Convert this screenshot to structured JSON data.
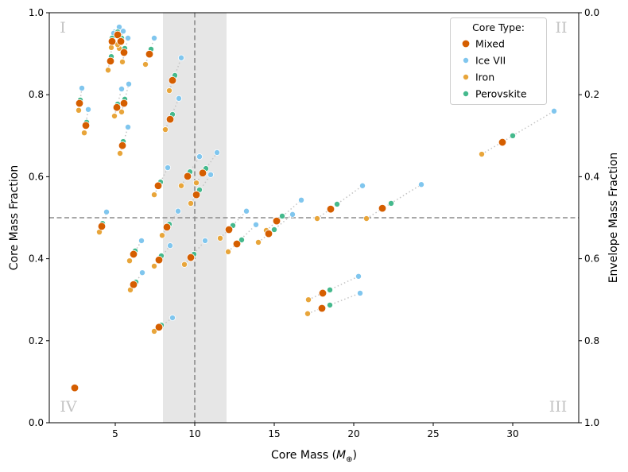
{
  "chart_data": {
    "type": "scatter",
    "xlabel_prefix": "Core Mass (",
    "xlabel_symbol": "M",
    "xlabel_sub": "⊕",
    "xlabel_suffix": ")",
    "ylabel": "Core Mass Fraction",
    "ylabel_right": "Envelope Mass Fraction",
    "xlim": [
      0.85,
      34.15
    ],
    "ylim": [
      0,
      1
    ],
    "ylim_right": [
      1,
      0
    ],
    "x_ticks": [
      "5",
      "10",
      "15",
      "20",
      "25",
      "30"
    ],
    "x_tick_values": [
      5,
      10,
      15,
      20,
      25,
      30
    ],
    "y_ticks": [
      "0.0",
      "0.2",
      "0.4",
      "0.6",
      "0.8",
      "1.0"
    ],
    "y_tick_values": [
      0,
      0.2,
      0.4,
      0.6,
      0.8,
      1.0
    ],
    "y_right_ticks": [
      "0.0",
      "0.2",
      "0.4",
      "0.6",
      "0.8",
      "1.0"
    ],
    "grid": false,
    "reference_lines": {
      "vertical_x": 10,
      "horizontal_y": 0.5
    },
    "shaded_band_x": [
      8,
      12
    ],
    "quadrant_labels": {
      "top_left": "I",
      "top_right": "II",
      "bottom_right": "III",
      "bottom_left": "IV"
    },
    "legend": {
      "title": "Core Type:",
      "placement": "top-right",
      "entries": [
        "Mixed",
        "Ice VII",
        "Iron",
        "Perovskite"
      ]
    },
    "colors": {
      "Mixed": "#d55e00",
      "Ice VII": "#80c6ee",
      "Iron": "#e8a53a",
      "Perovskite": "#45b98d",
      "link": "#c4c4c4",
      "refline": "#8c8c8c",
      "band": "#e6e6e6"
    },
    "groups": [
      {
        "Iron": [
          2.7,
          0.762
        ],
        "Mixed": [
          2.75,
          0.779
        ],
        "Perovskite": [
          2.8,
          0.787
        ],
        "Ice VII": [
          2.9,
          0.816
        ]
      },
      {
        "Iron": [
          3.05,
          0.707
        ],
        "Mixed": [
          3.15,
          0.725
        ],
        "Perovskite": [
          3.2,
          0.733
        ],
        "Ice VII": [
          3.3,
          0.764
        ]
      },
      {
        "Iron": [
          4.55,
          0.86
        ],
        "Mixed": [
          4.7,
          0.882
        ],
        "Perovskite": [
          4.75,
          0.893
        ],
        "Ice VII": [
          4.95,
          0.953
        ]
      },
      {
        "Iron": [
          4.75,
          0.915
        ],
        "Mixed": [
          4.8,
          0.93
        ],
        "Perovskite": [
          4.8,
          0.938
        ],
        "Ice VII": [
          4.9,
          0.95
        ]
      },
      {
        "Iron": [
          5.25,
          0.913
        ],
        "Mixed": [
          5.15,
          0.946
        ],
        "Perovskite": [
          5.15,
          0.953
        ],
        "Ice VII": [
          5.25,
          0.965
        ]
      },
      {
        "Iron": [
          5.15,
          0.922
        ],
        "Mixed": [
          5.35,
          0.93
        ],
        "Perovskite": [
          5.4,
          0.938
        ],
        "Ice VII": [
          5.5,
          0.955
        ]
      },
      {
        "Iron": [
          5.45,
          0.88
        ],
        "Mixed": [
          5.55,
          0.903
        ],
        "Perovskite": [
          5.6,
          0.913
        ],
        "Ice VII": [
          5.8,
          0.938
        ]
      },
      {
        "Iron": [
          5.4,
          0.758
        ],
        "Mixed": [
          5.55,
          0.779
        ],
        "Perovskite": [
          5.6,
          0.789
        ],
        "Ice VII": [
          5.85,
          0.826
        ]
      },
      {
        "Iron": [
          4.95,
          0.748
        ],
        "Mixed": [
          5.1,
          0.769
        ],
        "Perovskite": [
          5.15,
          0.777
        ],
        "Ice VII": [
          5.4,
          0.814
        ]
      },
      {
        "Iron": [
          5.3,
          0.657
        ],
        "Mixed": [
          5.45,
          0.676
        ],
        "Perovskite": [
          5.5,
          0.686
        ],
        "Ice VII": [
          5.8,
          0.721
        ]
      },
      {
        "Iron": [
          6.9,
          0.874
        ],
        "Mixed": [
          7.15,
          0.899
        ],
        "Perovskite": [
          7.25,
          0.911
        ],
        "Ice VII": [
          7.45,
          0.938
        ]
      },
      {
        "Iron": [
          8.4,
          0.81
        ],
        "Mixed": [
          8.6,
          0.835
        ],
        "Perovskite": [
          8.75,
          0.847
        ],
        "Ice VII": [
          9.15,
          0.89
        ]
      },
      {
        "Iron": [
          8.15,
          0.715
        ],
        "Mixed": [
          8.45,
          0.74
        ],
        "Perovskite": [
          8.6,
          0.752
        ],
        "Ice VII": [
          9.0,
          0.791
        ]
      },
      {
        "Iron": [
          7.45,
          0.556
        ],
        "Mixed": [
          7.7,
          0.578
        ],
        "Perovskite": [
          7.85,
          0.587
        ],
        "Ice VII": [
          8.3,
          0.622
        ]
      },
      {
        "Iron": [
          9.15,
          0.578
        ],
        "Mixed": [
          9.55,
          0.601
        ],
        "Perovskite": [
          9.7,
          0.612
        ],
        "Ice VII": [
          10.3,
          0.649
        ]
      },
      {
        "Iron": [
          10.1,
          0.585
        ],
        "Mixed": [
          10.5,
          0.609
        ],
        "Perovskite": [
          10.7,
          0.62
        ],
        "Ice VII": [
          11.4,
          0.659
        ]
      },
      {
        "Iron": [
          9.75,
          0.535
        ],
        "Mixed": [
          10.1,
          0.556
        ],
        "Perovskite": [
          10.3,
          0.568
        ],
        "Ice VII": [
          11.0,
          0.605
        ]
      },
      {
        "Iron": [
          4.0,
          0.465
        ],
        "Mixed": [
          4.15,
          0.479
        ],
        "Perovskite": [
          4.2,
          0.486
        ],
        "Ice VII": [
          4.45,
          0.514
        ]
      },
      {
        "Iron": [
          7.95,
          0.457
        ],
        "Mixed": [
          8.25,
          0.477
        ],
        "Perovskite": [
          8.4,
          0.484
        ],
        "Ice VII": [
          8.95,
          0.516
        ]
      },
      {
        "Iron": [
          11.6,
          0.45
        ],
        "Mixed": [
          12.15,
          0.471
        ],
        "Perovskite": [
          12.4,
          0.481
        ],
        "Ice VII": [
          13.25,
          0.516
        ]
      },
      {
        "Iron": [
          12.1,
          0.417
        ],
        "Mixed": [
          12.65,
          0.436
        ],
        "Perovskite": [
          12.95,
          0.446
        ],
        "Ice VII": [
          13.85,
          0.483
        ]
      },
      {
        "Iron": [
          14.0,
          0.44
        ],
        "Mixed": [
          14.65,
          0.461
        ],
        "Perovskite": [
          15.0,
          0.471
        ],
        "Ice VII": [
          16.15,
          0.508
        ]
      },
      {
        "Iron": [
          14.5,
          0.469
        ],
        "Mixed": [
          15.15,
          0.492
        ],
        "Perovskite": [
          15.5,
          0.504
        ],
        "Ice VII": [
          16.7,
          0.543
        ]
      },
      {
        "Iron": [
          17.7,
          0.498
        ],
        "Mixed": [
          18.55,
          0.521
        ],
        "Perovskite": [
          18.95,
          0.533
        ],
        "Ice VII": [
          20.55,
          0.578
        ]
      },
      {
        "Iron": [
          20.8,
          0.498
        ],
        "Mixed": [
          21.8,
          0.523
        ],
        "Perovskite": [
          22.35,
          0.535
        ],
        "Ice VII": [
          24.25,
          0.581
        ]
      },
      {
        "Iron": [
          28.05,
          0.655
        ],
        "Mixed": [
          29.35,
          0.684
        ],
        "Perovskite": [
          30.0,
          0.7
        ],
        "Ice VII": [
          32.6,
          0.76
        ]
      },
      {
        "Iron": [
          5.9,
          0.395
        ],
        "Mixed": [
          6.15,
          0.411
        ],
        "Perovskite": [
          6.25,
          0.419
        ],
        "Ice VII": [
          6.65,
          0.444
        ]
      },
      {
        "Iron": [
          7.45,
          0.382
        ],
        "Mixed": [
          7.75,
          0.397
        ],
        "Perovskite": [
          7.9,
          0.407
        ],
        "Ice VII": [
          8.45,
          0.432
        ]
      },
      {
        "Iron": [
          9.35,
          0.386
        ],
        "Mixed": [
          9.75,
          0.403
        ],
        "Perovskite": [
          9.95,
          0.411
        ],
        "Ice VII": [
          10.65,
          0.444
        ]
      },
      {
        "Iron": [
          5.95,
          0.324
        ],
        "Mixed": [
          6.15,
          0.337
        ],
        "Perovskite": [
          6.3,
          0.343
        ],
        "Ice VII": [
          6.7,
          0.366
        ]
      },
      {
        "Iron": [
          7.45,
          0.223
        ],
        "Mixed": [
          7.75,
          0.233
        ],
        "Perovskite": [
          7.9,
          0.238
        ],
        "Ice VII": [
          8.6,
          0.256
        ]
      },
      {
        "Iron": [
          17.15,
          0.3
        ],
        "Mixed": [
          18.05,
          0.316
        ],
        "Perovskite": [
          18.5,
          0.324
        ],
        "Ice VII": [
          20.3,
          0.357
        ]
      },
      {
        "Iron": [
          17.1,
          0.266
        ],
        "Mixed": [
          18.0,
          0.279
        ],
        "Perovskite": [
          18.5,
          0.287
        ],
        "Ice VII": [
          20.4,
          0.316
        ]
      },
      {
        "Mixed": [
          2.45,
          0.085
        ]
      }
    ]
  }
}
